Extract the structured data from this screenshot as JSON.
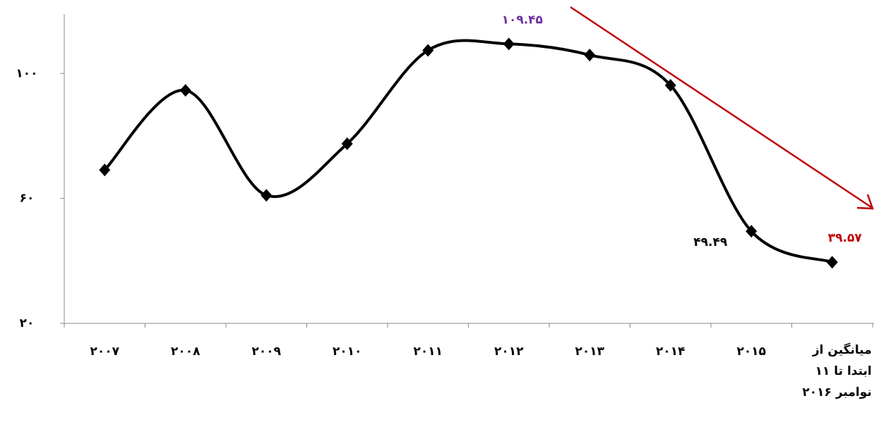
{
  "chart_data": {
    "type": "line",
    "categories": [
      "۲۰۰۷",
      "۲۰۰۸",
      "۲۰۰۹",
      "۲۰۱۰",
      "۲۰۱۱",
      "۲۰۱۲",
      "۲۰۱۳",
      "۲۰۱۴",
      "۲۰۱۵",
      "میانگین از\nابتدا تا ۱۱\nنوامبر ۲۰۱۶"
    ],
    "values": [
      69.1,
      94.6,
      61.0,
      77.5,
      107.4,
      109.45,
      105.9,
      96.2,
      49.49,
      39.57
    ],
    "value_labels": [
      null,
      null,
      null,
      null,
      null,
      "۱۰۹.۴۵",
      null,
      null,
      "۴۹.۴۹",
      "۳۹.۵۷"
    ],
    "value_label_colors": [
      null,
      null,
      null,
      null,
      null,
      "#7030a0",
      null,
      null,
      "#000000",
      "#c00000"
    ],
    "color": "#000000",
    "ylim": [
      20,
      119
    ],
    "yticks": [
      {
        "value": 20,
        "label": "۲۰"
      },
      {
        "value": 60,
        "label": "۶۰"
      },
      {
        "value": 100,
        "label": "۱۰۰"
      }
    ]
  }
}
